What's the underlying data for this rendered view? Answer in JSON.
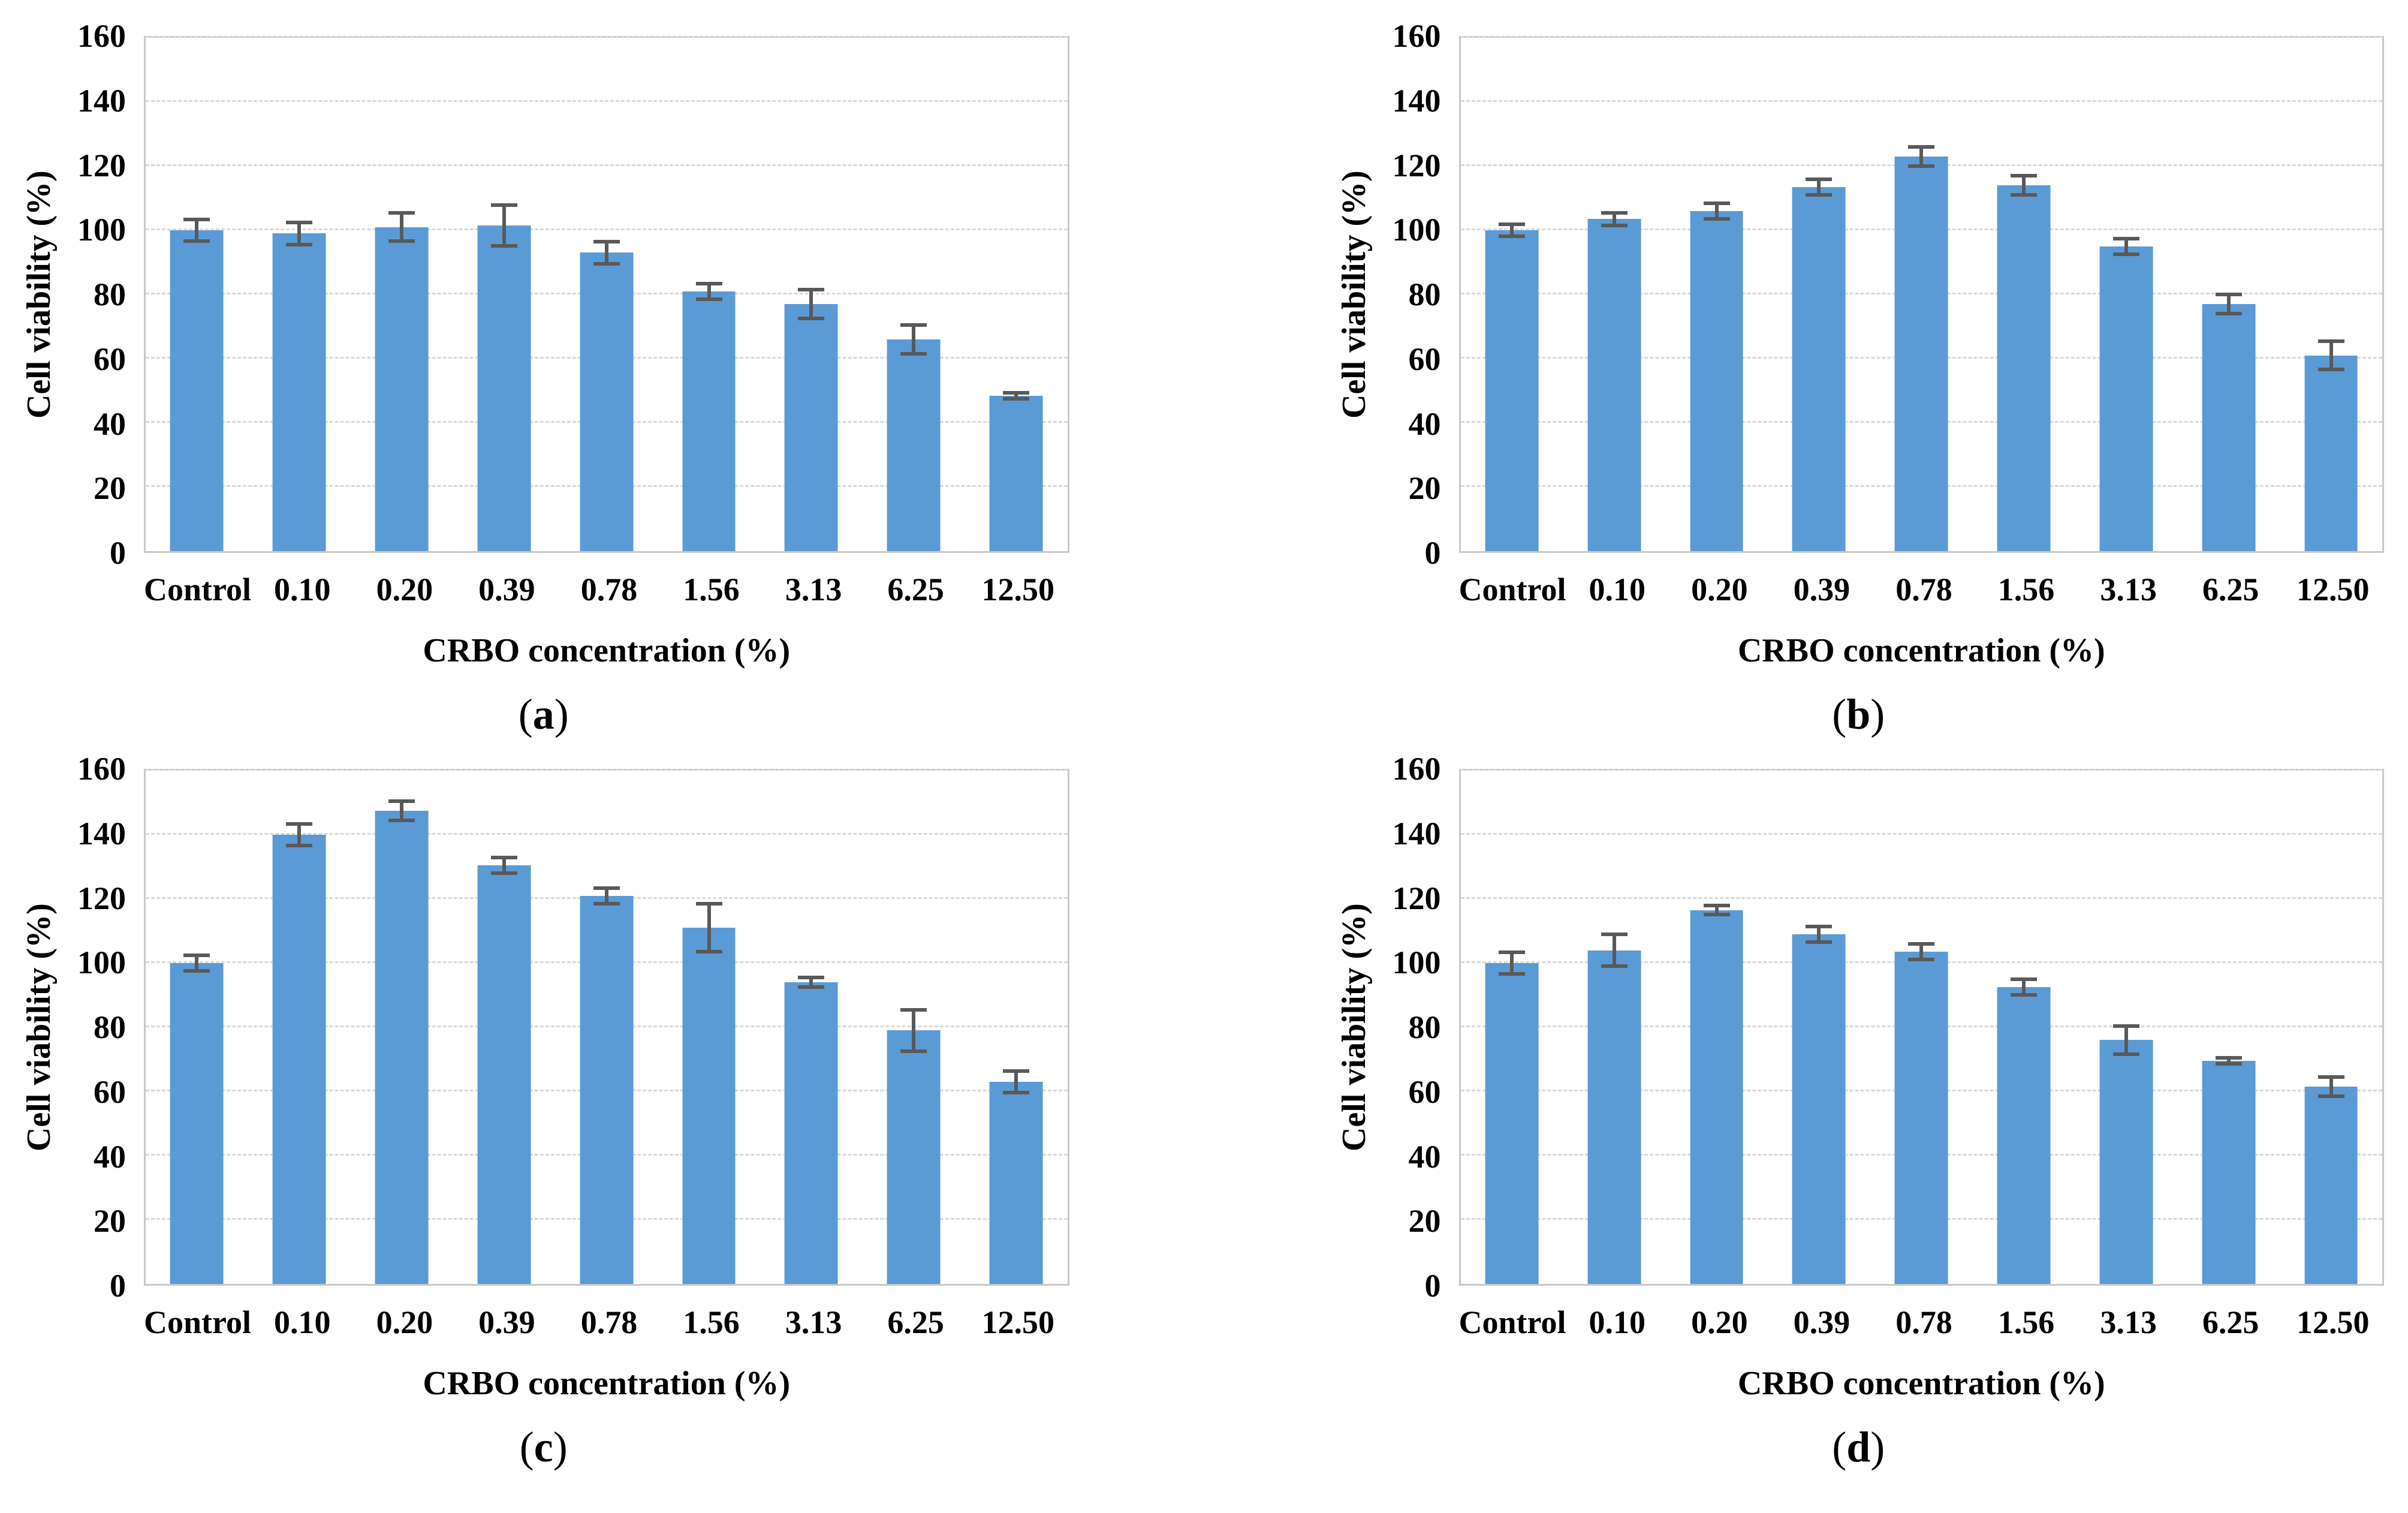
{
  "figure": {
    "ylabel": "Cell viability (%)",
    "xlabel": "CRBO concentration (%)",
    "colors": {
      "bar": "#5B9BD5",
      "error_bar": "#595959",
      "gridline": "#D9D9D9",
      "plot_border": "#C9C9C9",
      "text": "#000000"
    },
    "panels": [
      {
        "key": "a",
        "label_text": "(a)",
        "label_open": "(",
        "label_letter": "a",
        "label_close": ")"
      },
      {
        "key": "b",
        "label_text": "(b)",
        "label_open": "(",
        "label_letter": "b",
        "label_close": ")"
      },
      {
        "key": "c",
        "label_text": "(c)",
        "label_open": "(",
        "label_letter": "c",
        "label_close": ")"
      },
      {
        "key": "d",
        "label_text": "(d)",
        "label_open": "(",
        "label_letter": "d",
        "label_close": ")"
      }
    ]
  },
  "chart_data": [
    {
      "type": "bar",
      "title": "(a)",
      "categories": [
        "Control",
        "0.10",
        "0.20",
        "0.39",
        "0.78",
        "1.56",
        "3.13",
        "6.25",
        "12.50"
      ],
      "values": [
        100,
        99,
        101,
        101.5,
        93,
        81,
        77,
        66,
        48.5
      ],
      "errors": [
        4,
        4,
        5,
        7,
        4,
        3,
        5,
        5,
        1.5
      ],
      "xlabel": "CRBO concentration (%)",
      "ylabel": "Cell viability (%)",
      "ylim": [
        0,
        160
      ],
      "yticks": [
        0,
        20,
        40,
        60,
        80,
        100,
        120,
        140,
        160
      ],
      "grid": true,
      "legend": false
    },
    {
      "type": "bar",
      "title": "(b)",
      "categories": [
        "Control",
        "0.10",
        "0.20",
        "0.39",
        "0.78",
        "1.56",
        "3.13",
        "6.25",
        "12.50"
      ],
      "values": [
        100,
        103.5,
        106,
        113.5,
        123,
        114,
        95,
        77,
        61
      ],
      "errors": [
        2.5,
        2.5,
        3,
        3,
        3.5,
        3.5,
        3,
        3.5,
        5
      ],
      "xlabel": "CRBO concentration (%)",
      "ylabel": "Cell viability (%)",
      "ylim": [
        0,
        160
      ],
      "yticks": [
        0,
        20,
        40,
        60,
        80,
        100,
        120,
        140,
        160
      ],
      "grid": true,
      "legend": false
    },
    {
      "type": "bar",
      "title": "(c)",
      "categories": [
        "Control",
        "0.10",
        "0.20",
        "0.39",
        "0.78",
        "1.56",
        "3.13",
        "6.25",
        "12.50"
      ],
      "values": [
        100,
        140,
        147.5,
        130.5,
        121,
        111,
        94,
        79,
        63
      ],
      "errors": [
        3,
        4,
        3.5,
        3,
        3,
        8,
        2,
        7,
        4
      ],
      "xlabel": "CRBO concentration (%)",
      "ylabel": "Cell viability (%)",
      "ylim": [
        0,
        160
      ],
      "yticks": [
        0,
        20,
        40,
        60,
        80,
        100,
        120,
        140,
        160
      ],
      "grid": true,
      "legend": false
    },
    {
      "type": "bar",
      "title": "(d)",
      "categories": [
        "Control",
        "0.10",
        "0.20",
        "0.39",
        "0.78",
        "1.56",
        "3.13",
        "6.25",
        "12.50"
      ],
      "values": [
        100,
        104,
        116.5,
        109,
        103.5,
        92.5,
        76,
        69.5,
        61.5
      ],
      "errors": [
        4,
        5.5,
        2,
        3,
        3,
        3,
        5,
        1.5,
        3.5
      ],
      "xlabel": "CRBO concentration (%)",
      "ylabel": "Cell viability (%)",
      "ylim": [
        0,
        160
      ],
      "yticks": [
        0,
        20,
        40,
        60,
        80,
        100,
        120,
        140,
        160
      ],
      "grid": true,
      "legend": false
    }
  ]
}
